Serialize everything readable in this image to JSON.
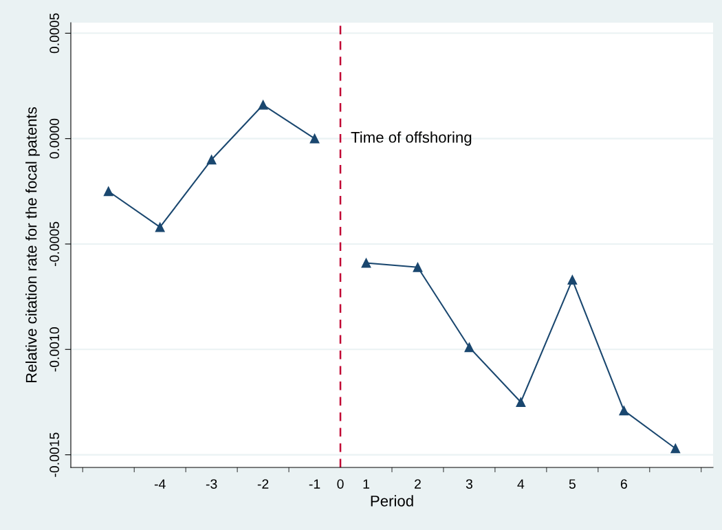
{
  "chart_data": {
    "type": "line",
    "xlabel": "Period",
    "ylabel": "Relative citation rate for the focal patents",
    "series": [
      {
        "color": "#1a476f",
        "x": [
          -4.5,
          -3.5,
          -2.5,
          -1.5,
          -0.5
        ],
        "values": [
          -0.00025,
          -0.00042,
          -0.0001,
          0.00016,
          0.0
        ]
      },
      {
        "color": "#1a476f",
        "x": [
          0.5,
          1.5,
          2.5,
          3.5,
          4.5,
          5.5,
          6.5
        ],
        "values": [
          -0.00059,
          -0.00061,
          -0.00099,
          -0.00125,
          -0.00067,
          -0.00129,
          -0.00147
        ]
      }
    ],
    "xlim": [
      -5.23,
      7.23
    ],
    "ylim": [
      -0.00156,
      0.00055
    ],
    "xticks": [
      {
        "value": -5,
        "label": null
      },
      {
        "value": -4,
        "label": null
      },
      {
        "value": -3.5,
        "label": "-4"
      },
      {
        "value": -3,
        "label": null
      },
      {
        "value": -2.5,
        "label": "-3"
      },
      {
        "value": -2,
        "label": null
      },
      {
        "value": -1.5,
        "label": "-2"
      },
      {
        "value": -1,
        "label": null
      },
      {
        "value": -0.5,
        "label": "-1"
      },
      {
        "value": 0,
        "label": "0"
      },
      {
        "value": 0.5,
        "label": "1"
      },
      {
        "value": 1,
        "label": null
      },
      {
        "value": 1.5,
        "label": "2"
      },
      {
        "value": 2,
        "label": null
      },
      {
        "value": 2.5,
        "label": "3"
      },
      {
        "value": 3,
        "label": null
      },
      {
        "value": 3.5,
        "label": "4"
      },
      {
        "value": 4,
        "label": null
      },
      {
        "value": 4.5,
        "label": "5"
      },
      {
        "value": 5,
        "label": null
      },
      {
        "value": 5.5,
        "label": "6"
      },
      {
        "value": 6,
        "label": null
      },
      {
        "value": 7,
        "label": null
      }
    ],
    "yticks": [
      {
        "value": 0.0005,
        "label": "0.0005"
      },
      {
        "value": 0.0,
        "label": "0.0000"
      },
      {
        "value": -0.0005,
        "label": "-0.0005"
      },
      {
        "value": -0.001,
        "label": "-0.0010"
      },
      {
        "value": -0.0015,
        "label": "-0.0015"
      }
    ],
    "ref_lines": [
      {
        "axis": "x",
        "value": 0,
        "label": "Time of offshoring",
        "color": "#c10534",
        "line_style": "dashed"
      }
    ],
    "grid": "y",
    "marker": "triangle",
    "line_style": "solid"
  }
}
